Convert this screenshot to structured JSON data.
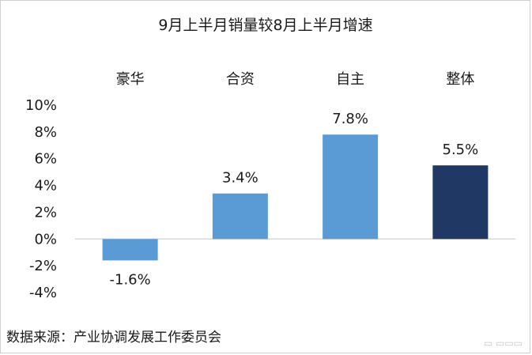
{
  "chart_data": {
    "type": "bar",
    "title": "9月上半月销量较8月上半月增速",
    "categories": [
      "豪华",
      "合资",
      "自主",
      "整体"
    ],
    "values": [
      -1.6,
      3.4,
      7.8,
      5.5
    ],
    "data_labels": [
      "-1.6%",
      "3.4%",
      "7.8%",
      "5.5%"
    ],
    "colors": [
      "#5b9bd5",
      "#5b9bd5",
      "#5b9bd5",
      "#1f3864"
    ],
    "ylim": [
      -4,
      10
    ],
    "yticks": [
      "10%",
      "8%",
      "6%",
      "4%",
      "2%",
      "0%",
      "-2%",
      "-4%"
    ],
    "ytick_values": [
      10,
      8,
      6,
      4,
      2,
      0,
      -2,
      -4
    ],
    "category_labels_position": "top",
    "grid": false,
    "xlabel": "",
    "ylabel": ""
  },
  "source_note": "数据来源：产业协调发展工作委员会",
  "watermark": "懂车帝"
}
